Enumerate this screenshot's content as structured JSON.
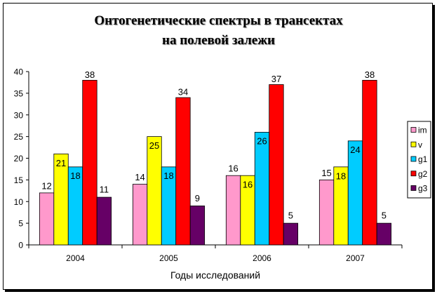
{
  "chart_data": {
    "type": "bar",
    "title": "Онтогенетические спектры в трансектах\nна полевой залежи",
    "xlabel": "Годы исследований",
    "ylabel": "",
    "categories": [
      "2004",
      "2005",
      "2006",
      "2007"
    ],
    "ylim": [
      0,
      40
    ],
    "yticks": [
      0,
      5,
      10,
      15,
      20,
      25,
      30,
      35,
      40
    ],
    "grid": false,
    "legend_position": "right",
    "data_labels": true,
    "series": [
      {
        "name": "im",
        "color": "#FF99CC",
        "values": [
          12,
          14,
          16,
          15
        ]
      },
      {
        "name": "v",
        "color": "#FFFF00",
        "values": [
          21,
          25,
          16,
          18
        ]
      },
      {
        "name": "g1",
        "color": "#00CCFF",
        "values": [
          18,
          18,
          26,
          24
        ]
      },
      {
        "name": "g2",
        "color": "#FF0000",
        "values": [
          38,
          34,
          37,
          38
        ]
      },
      {
        "name": "g3",
        "color": "#660066",
        "values": [
          11,
          9,
          5,
          5
        ]
      }
    ]
  }
}
